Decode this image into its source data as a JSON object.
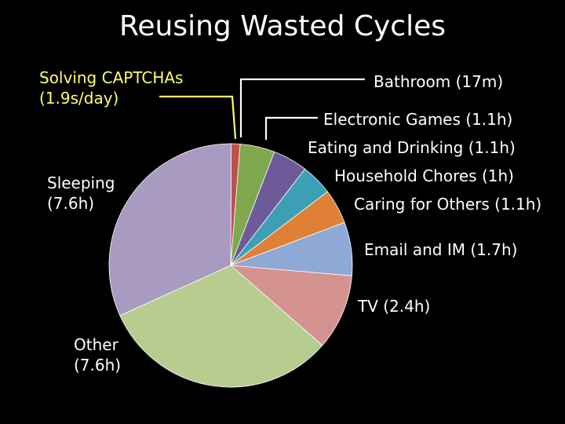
{
  "title": "Reusing Wasted Cycles",
  "chart_data": {
    "type": "pie",
    "unit": "hours/day",
    "title": "Reusing Wasted Cycles",
    "slices": [
      {
        "label_line1": "Solving CAPTCHAs",
        "label_line2": "(1.9s/day)",
        "value": 0.000528,
        "color": "#ffff66"
      },
      {
        "label_line1": "Bathroom (17m)",
        "label_line2": "",
        "value": 0.283,
        "color": "#c0504d"
      },
      {
        "label_line1": "Electronic Games (1.1h)",
        "label_line2": "",
        "value": 1.1,
        "color": "#7fa84f"
      },
      {
        "label_line1": "Eating and Drinking (1.1h)",
        "label_line2": "",
        "value": 1.1,
        "color": "#6e5a9a"
      },
      {
        "label_line1": "Household Chores (1h)",
        "label_line2": "",
        "value": 1.0,
        "color": "#3c9fb5"
      },
      {
        "label_line1": "Caring for Others (1.1h)",
        "label_line2": "",
        "value": 1.1,
        "color": "#e07f36"
      },
      {
        "label_line1": "Email and IM (1.7h)",
        "label_line2": "",
        "value": 1.7,
        "color": "#8ea9d6"
      },
      {
        "label_line1": "TV (2.4h)",
        "label_line2": "",
        "value": 2.4,
        "color": "#d49390"
      },
      {
        "label_line1": "Other",
        "label_line2": "(7.6h)",
        "value": 7.6,
        "color": "#b7cc8f"
      },
      {
        "label_line1": "Sleeping",
        "label_line2": "(7.6h)",
        "value": 7.6,
        "color": "#a89ac0"
      }
    ]
  }
}
